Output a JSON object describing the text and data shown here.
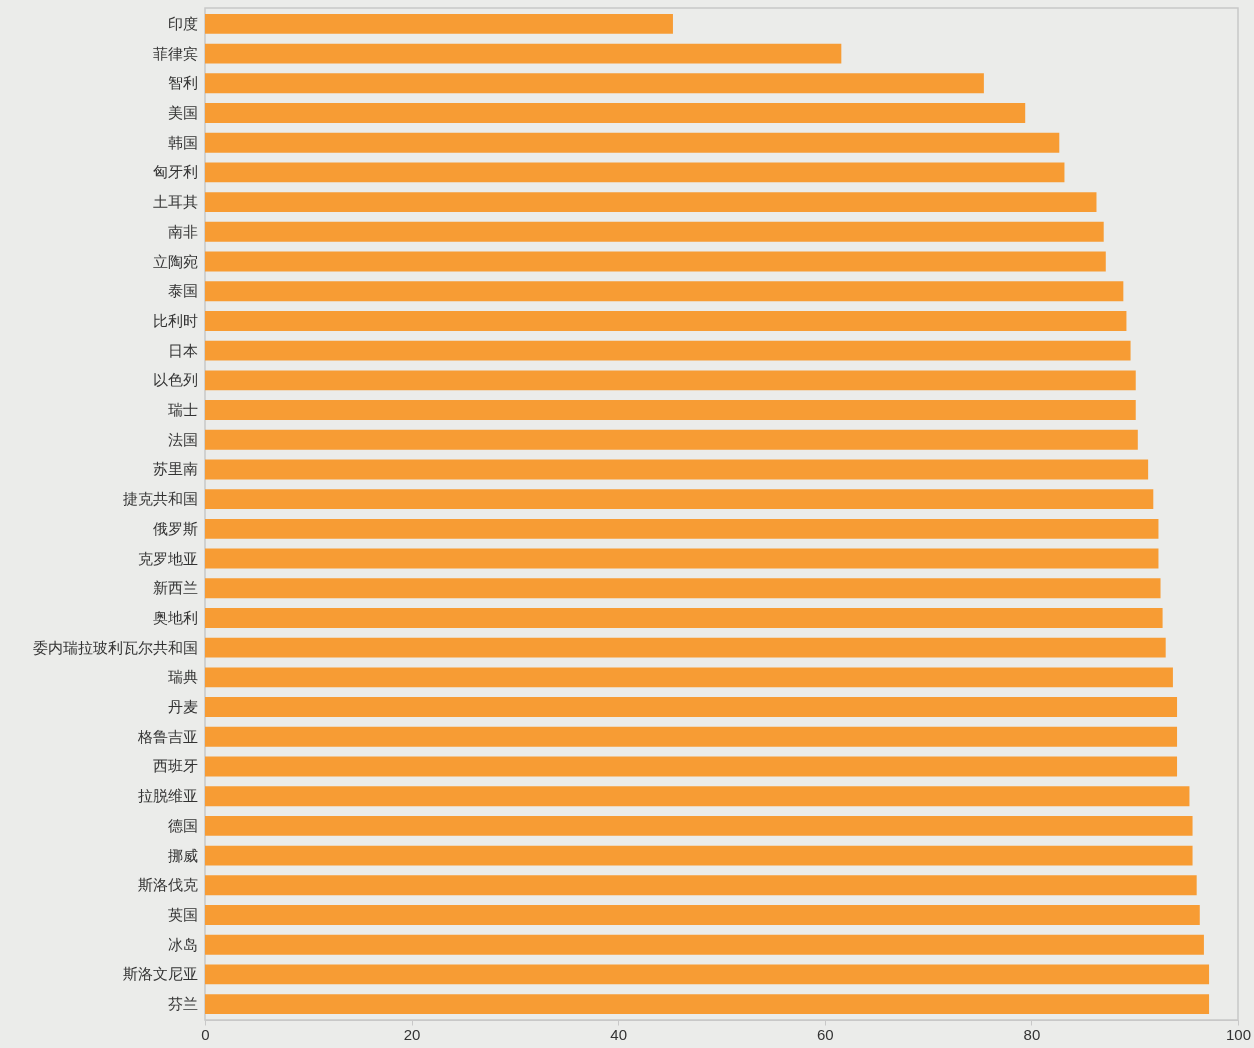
{
  "chart_data": {
    "type": "bar",
    "orientation": "horizontal",
    "color": "#f79c34",
    "categories": [
      "印度",
      "菲律宾",
      "智利",
      "美国",
      "韩国",
      "匈牙利",
      "土耳其",
      "南非",
      "立陶宛",
      "泰国",
      "比利时",
      "日本",
      "以色列",
      "瑞士",
      "法国",
      "苏里南",
      "捷克共和国",
      "俄罗斯",
      "克罗地亚",
      "新西兰",
      "奥地利",
      "委内瑞拉玻利瓦尔共和国",
      "瑞典",
      "丹麦",
      "格鲁吉亚",
      "西班牙",
      "拉脱维亚",
      "德国",
      "挪威",
      "斯洛伐克",
      "英国",
      "冰岛",
      "斯洛文尼亚",
      "芬兰"
    ],
    "values": [
      45.3,
      61.6,
      75.4,
      79.4,
      82.7,
      83.2,
      86.3,
      87.0,
      87.2,
      88.9,
      89.2,
      89.6,
      90.1,
      90.1,
      90.3,
      91.3,
      91.8,
      92.3,
      92.3,
      92.5,
      92.7,
      93.0,
      93.7,
      94.1,
      94.1,
      94.1,
      95.3,
      95.6,
      95.6,
      96.0,
      96.3,
      96.7,
      97.2,
      97.2
    ],
    "xlim": [
      0,
      100
    ],
    "xticks": [
      0,
      20,
      40,
      60,
      80,
      100
    ],
    "grid": false
  }
}
